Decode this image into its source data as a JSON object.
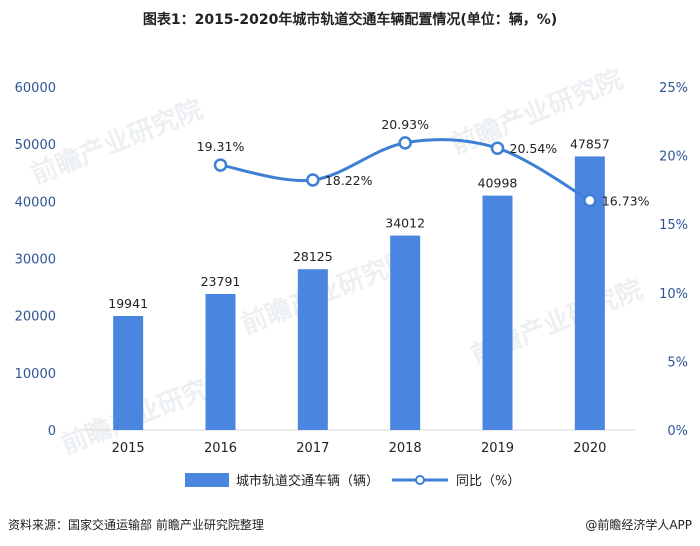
{
  "title": "图表1：2015-2020年城市轨道交通车辆配置情况(单位：辆，%)",
  "source": "资料来源：国家交通运输部 前瞻产业研究院整理",
  "brand": "@前瞻经济学人APP",
  "watermark": "前瞻产业研究院",
  "colors": {
    "bar": "#4a86e0",
    "line": "#3e7fd6",
    "axis_text": "#2f5597"
  },
  "chart_data": {
    "type": "bar",
    "categories": [
      "2015",
      "2016",
      "2017",
      "2018",
      "2019",
      "2020"
    ],
    "series": [
      {
        "name": "城市轨道交通车辆（辆）",
        "type": "bar",
        "axis": "left",
        "values": [
          19941,
          23791,
          28125,
          34012,
          40998,
          47857
        ],
        "labels": [
          "19941",
          "23791",
          "28125",
          "34012",
          "40998",
          "47857"
        ]
      },
      {
        "name": "同比（%）",
        "type": "line",
        "axis": "right",
        "values": [
          null,
          19.31,
          18.22,
          20.93,
          20.54,
          16.73
        ],
        "labels": [
          "",
          "19.31%",
          "18.22%",
          "20.93%",
          "20.54%",
          "16.73%"
        ]
      }
    ],
    "y_left": {
      "min": 0,
      "max": 60000,
      "ticks": [
        "0",
        "10000",
        "20000",
        "30000",
        "40000",
        "50000",
        "60000"
      ]
    },
    "y_right": {
      "min": 0,
      "max": 25,
      "ticks": [
        "0%",
        "5%",
        "10%",
        "15%",
        "20%",
        "25%"
      ]
    },
    "grid": false,
    "legend_position": "bottom"
  }
}
